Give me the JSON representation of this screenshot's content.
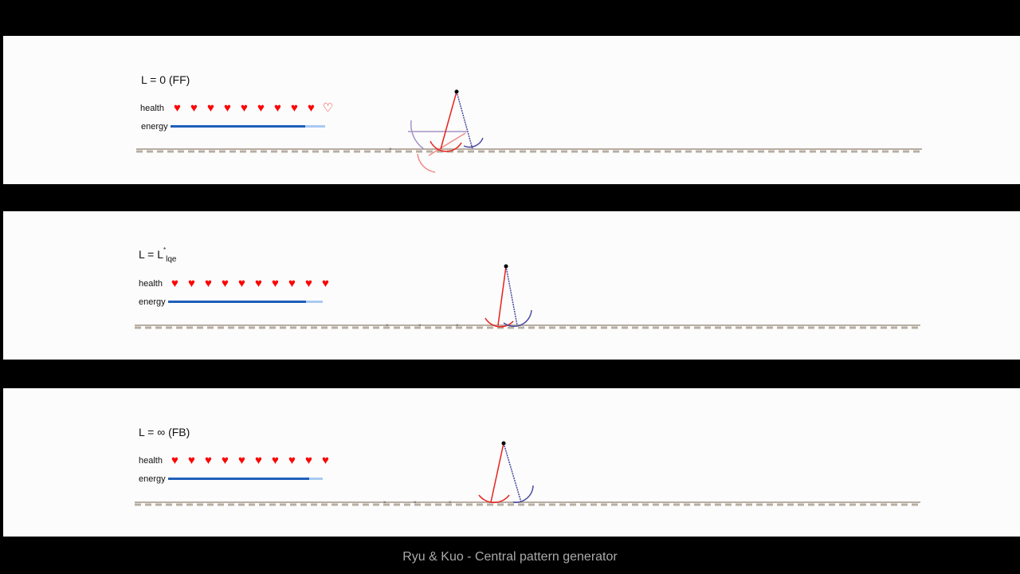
{
  "panels": [
    {
      "title": {
        "prefix": "L = 0 (FF)",
        "sup": "",
        "sub": ""
      },
      "health_label": "health",
      "energy_label": "energy",
      "hearts_filled": 9,
      "hearts_total": 10,
      "energy": 0.87
    },
    {
      "title": {
        "prefix": "L = L",
        "sup": "*",
        "sub": "lqe"
      },
      "health_label": "health",
      "energy_label": "energy",
      "hearts_filled": 10,
      "hearts_total": 10,
      "energy": 0.89
    },
    {
      "title": {
        "prefix": "L = ∞ (FB)",
        "sup": "",
        "sub": ""
      },
      "health_label": "health",
      "energy_label": "energy",
      "hearts_filled": 10,
      "hearts_total": 10,
      "energy": 0.91
    }
  ],
  "colors": {
    "heart": "#ff0000",
    "energy_fill": "#1f5fba",
    "energy_track": "#a9c9f2",
    "ground": "#b8aea3",
    "leg_red": "#e8201a",
    "leg_blue": "#4a4aa0",
    "ghost_red": "#f08a86",
    "ghost_purple": "#a593c8"
  },
  "icons": {
    "heart_full": "heart-icon",
    "heart_empty": "heart-outline-icon"
  },
  "caption": "Ryu & Kuo - Central pattern generator"
}
